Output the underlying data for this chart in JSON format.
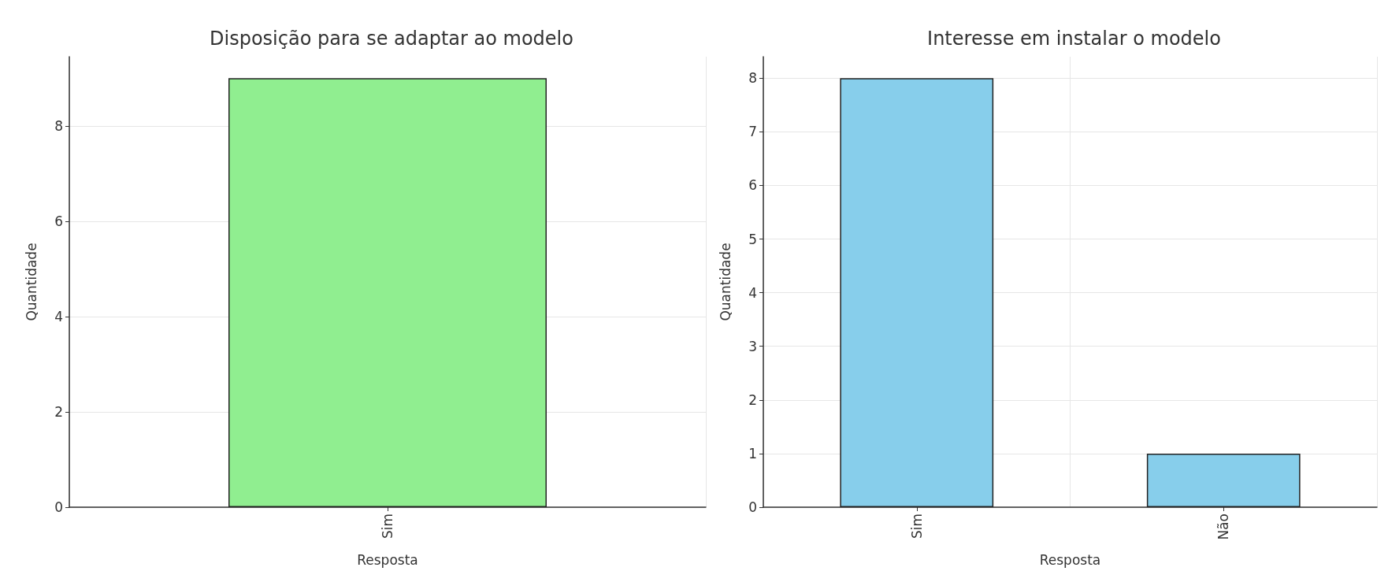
{
  "chart_data": [
    {
      "type": "bar",
      "title": "Disposição para se adaptar ao modelo",
      "xlabel": "Resposta",
      "ylabel": "Quantidade",
      "categories": [
        "Sim"
      ],
      "values": [
        9
      ],
      "color": "#90ee90",
      "ylim": [
        0,
        9.45
      ],
      "yticks": [
        0,
        2,
        4,
        6,
        8
      ],
      "grid": true
    },
    {
      "type": "bar",
      "title": "Interesse em instalar o modelo",
      "xlabel": "Resposta",
      "ylabel": "Quantidade",
      "categories": [
        "Sim",
        "Não"
      ],
      "values": [
        8,
        1
      ],
      "color": "#87ceeb",
      "ylim": [
        0,
        8.4
      ],
      "yticks": [
        0,
        1,
        2,
        3,
        4,
        5,
        6,
        7,
        8
      ],
      "grid": true
    }
  ]
}
